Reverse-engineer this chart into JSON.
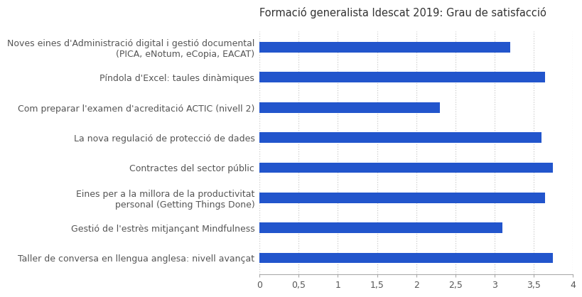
{
  "title": "Formació generalista Idescat 2019: Grau de satisfacció",
  "categories": [
    "Noves eines d'Administració digital i gestió documental\n(PICA, eNotum, eCopia, EACAT)",
    "Píndola d'Excel: taules dinàmiques",
    "Com preparar l'examen d'acreditació ACTIC (nivell 2)",
    "La nova regulació de protecció de dades",
    "Contractes del sector públic",
    "Eines per a la millora de la productivitat\npersonal (Getting Things Done)",
    "Gestió de l'estrès mitjançant Mindfulness",
    "Taller de conversa en llengua anglesa: nivell avançat"
  ],
  "values": [
    3.2,
    3.65,
    2.3,
    3.6,
    3.75,
    3.65,
    3.1,
    3.75
  ],
  "bar_color": "#2255CC",
  "xlim": [
    0,
    4
  ],
  "xticks": [
    0,
    0.5,
    1,
    1.5,
    2,
    2.5,
    3,
    3.5,
    4
  ],
  "xtick_labels": [
    "0",
    "0,5",
    "1",
    "1,5",
    "2",
    "2,5",
    "3",
    "3,5",
    "4"
  ],
  "title_fontsize": 10.5,
  "tick_fontsize": 9,
  "label_fontsize": 9,
  "background_color": "#ffffff",
  "grid_color": "#cccccc",
  "bar_height": 0.35
}
